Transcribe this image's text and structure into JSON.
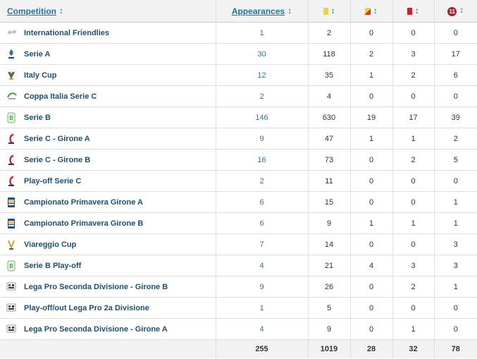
{
  "header": {
    "competition": "Competition",
    "appearances": "Appearances",
    "sort_glyph": "↕",
    "goals_badge": "11"
  },
  "icon_colors": {
    "yellow_card": "#f1d631",
    "red_card": "#c1272d",
    "goals_badge": "#a8213a",
    "link": "#1d75a3"
  },
  "rows": [
    {
      "logo": "international-friendlies-logo-icon",
      "competition": "International Friendlies",
      "appearances": "1",
      "yellow": "2",
      "yellow_red": "0",
      "red": "0",
      "goals": "0"
    },
    {
      "logo": "serie-a-logo-icon",
      "competition": "Serie A",
      "appearances": "30",
      "yellow": "118",
      "yellow_red": "2",
      "red": "3",
      "goals": "17"
    },
    {
      "logo": "italy-cup-logo-icon",
      "competition": "Italy Cup",
      "appearances": "12",
      "yellow": "35",
      "yellow_red": "1",
      "red": "2",
      "goals": "6"
    },
    {
      "logo": "coppa-italia-serie-c-logo-icon",
      "competition": "Coppa Italia Serie C",
      "appearances": "2",
      "yellow": "4",
      "yellow_red": "0",
      "red": "0",
      "goals": "0"
    },
    {
      "logo": "serie-b-logo-icon",
      "competition": "Serie B",
      "appearances": "146",
      "yellow": "630",
      "yellow_red": "19",
      "red": "17",
      "goals": "39"
    },
    {
      "logo": "serie-c-logo-icon",
      "competition": "Serie C - Girone A",
      "appearances": "9",
      "yellow": "47",
      "yellow_red": "1",
      "red": "1",
      "goals": "2"
    },
    {
      "logo": "serie-c-logo-icon",
      "competition": "Serie C - Girone B",
      "appearances": "16",
      "yellow": "73",
      "yellow_red": "0",
      "red": "2",
      "goals": "5"
    },
    {
      "logo": "serie-c-logo-icon",
      "competition": "Play-off Serie C",
      "appearances": "2",
      "yellow": "11",
      "yellow_red": "0",
      "red": "0",
      "goals": "0"
    },
    {
      "logo": "primavera-logo-icon",
      "competition": "Campionato Primavera Girone A",
      "appearances": "6",
      "yellow": "15",
      "yellow_red": "0",
      "red": "0",
      "goals": "1"
    },
    {
      "logo": "primavera-logo-icon",
      "competition": "Campionato Primavera Girone B",
      "appearances": "6",
      "yellow": "9",
      "yellow_red": "1",
      "red": "1",
      "goals": "1"
    },
    {
      "logo": "viareggio-cup-logo-icon",
      "competition": "Viareggio Cup",
      "appearances": "7",
      "yellow": "14",
      "yellow_red": "0",
      "red": "0",
      "goals": "3"
    },
    {
      "logo": "serie-b-logo-icon",
      "competition": "Serie B Play-off",
      "appearances": "4",
      "yellow": "21",
      "yellow_red": "4",
      "red": "3",
      "goals": "3"
    },
    {
      "logo": "lega-pro-logo-icon",
      "competition": "Lega Pro Seconda Divisione - Girone B",
      "appearances": "9",
      "yellow": "26",
      "yellow_red": "0",
      "red": "2",
      "goals": "1"
    },
    {
      "logo": "lega-pro-logo-icon",
      "competition": "Play-off/out Lega Pro 2a Divisione",
      "appearances": "1",
      "yellow": "5",
      "yellow_red": "0",
      "red": "0",
      "goals": "0"
    },
    {
      "logo": "lega-pro-logo-icon",
      "competition": "Lega Pro Seconda Divisione - Girone A",
      "appearances": "4",
      "yellow": "9",
      "yellow_red": "0",
      "red": "1",
      "goals": "0"
    }
  ],
  "totals": {
    "appearances": "255",
    "yellow": "1019",
    "yellow_red": "28",
    "red": "32",
    "goals": "78"
  }
}
